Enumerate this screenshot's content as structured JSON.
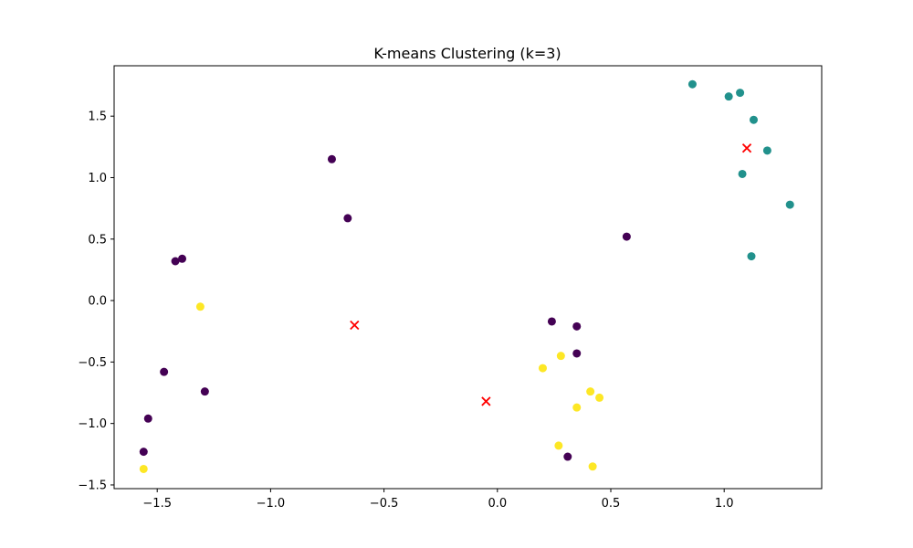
{
  "chart_data": {
    "type": "scatter",
    "title": "K-means Clustering (k=3)",
    "xlabel": "",
    "ylabel": "",
    "xlim": [
      -1.69,
      1.43
    ],
    "ylim": [
      -1.53,
      1.91
    ],
    "grid": false,
    "x_ticks": [
      -1.5,
      -1.0,
      -0.5,
      0.0,
      0.5,
      1.0
    ],
    "x_tick_labels": [
      "−1.5",
      "−1.0",
      "−0.5",
      "0.0",
      "0.5",
      "1.0"
    ],
    "y_ticks": [
      -1.5,
      -1.0,
      -0.5,
      0.0,
      0.5,
      1.0,
      1.5
    ],
    "y_tick_labels": [
      "−1.5",
      "−1.0",
      "−0.5",
      "0.0",
      "0.5",
      "1.0",
      "1.5"
    ],
    "colors": {
      "cluster_0": "#440154",
      "cluster_1": "#21918c",
      "cluster_2": "#fde725",
      "centroid": "#ff0000"
    },
    "series": [
      {
        "cluster": 0,
        "points": [
          [
            -0.73,
            1.15
          ],
          [
            -0.66,
            0.67
          ],
          [
            -1.42,
            0.32
          ],
          [
            -1.39,
            0.34
          ],
          [
            -1.47,
            -0.58
          ],
          [
            -1.29,
            -0.74
          ],
          [
            -1.54,
            -0.96
          ],
          [
            -1.56,
            -1.23
          ],
          [
            0.57,
            0.52
          ],
          [
            0.24,
            -0.17
          ],
          [
            0.35,
            -0.21
          ],
          [
            0.35,
            -0.43
          ],
          [
            0.31,
            -1.27
          ]
        ]
      },
      {
        "cluster": 1,
        "points": [
          [
            0.86,
            1.76
          ],
          [
            1.02,
            1.66
          ],
          [
            1.07,
            1.69
          ],
          [
            1.13,
            1.47
          ],
          [
            1.19,
            1.22
          ],
          [
            1.08,
            1.03
          ],
          [
            1.29,
            0.78
          ],
          [
            1.12,
            0.36
          ]
        ]
      },
      {
        "cluster": 2,
        "points": [
          [
            -1.31,
            -0.05
          ],
          [
            -1.56,
            -1.37
          ],
          [
            0.2,
            -0.55
          ],
          [
            0.28,
            -0.45
          ],
          [
            0.41,
            -0.74
          ],
          [
            0.45,
            -0.79
          ],
          [
            0.35,
            -0.87
          ],
          [
            0.27,
            -1.18
          ],
          [
            0.42,
            -1.35
          ]
        ]
      }
    ],
    "centroids": [
      [
        1.1,
        1.24
      ],
      [
        -0.63,
        -0.2
      ],
      [
        -0.05,
        -0.82
      ]
    ]
  }
}
